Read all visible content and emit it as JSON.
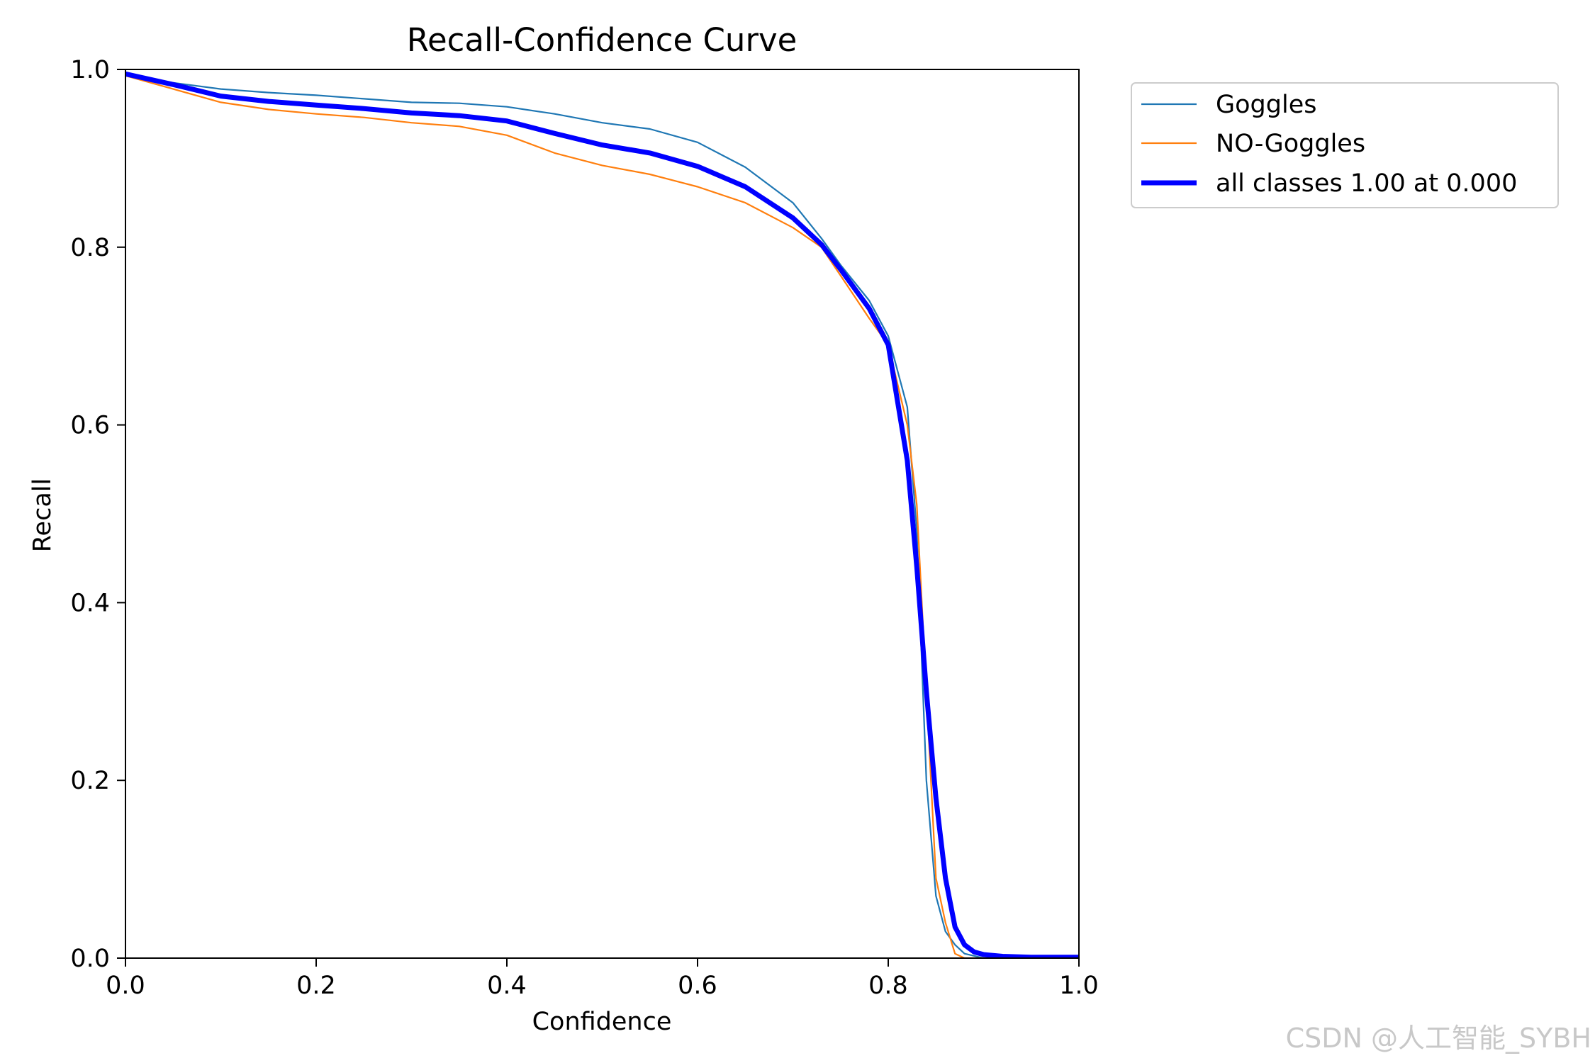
{
  "chart_data": {
    "type": "line",
    "title": "Recall-Confidence Curve",
    "xlabel": "Confidence",
    "ylabel": "Recall",
    "xlim": [
      0,
      1
    ],
    "ylim": [
      0,
      1
    ],
    "x_ticks": [
      "0.0",
      "0.2",
      "0.4",
      "0.6",
      "0.8",
      "1.0"
    ],
    "y_ticks": [
      "0.0",
      "0.2",
      "0.4",
      "0.6",
      "0.8",
      "1.0"
    ],
    "grid": false,
    "legend_position": "outside-top-right",
    "series": [
      {
        "name": "Goggles",
        "color": "#1f77b4",
        "x": [
          0.0,
          0.05,
          0.1,
          0.15,
          0.2,
          0.25,
          0.3,
          0.35,
          0.4,
          0.45,
          0.5,
          0.55,
          0.6,
          0.65,
          0.7,
          0.73,
          0.75,
          0.78,
          0.8,
          0.82,
          0.83,
          0.84,
          0.85,
          0.86,
          0.87,
          0.88,
          0.9,
          0.95,
          1.0
        ],
        "y": [
          0.995,
          0.985,
          0.978,
          0.974,
          0.971,
          0.967,
          0.963,
          0.962,
          0.958,
          0.95,
          0.94,
          0.933,
          0.918,
          0.89,
          0.85,
          0.81,
          0.78,
          0.74,
          0.7,
          0.62,
          0.48,
          0.2,
          0.07,
          0.03,
          0.015,
          0.005,
          0.0,
          0.0,
          0.0
        ]
      },
      {
        "name": "NO-Goggles",
        "color": "#ff7f0e",
        "x": [
          0.0,
          0.05,
          0.1,
          0.15,
          0.2,
          0.25,
          0.3,
          0.35,
          0.4,
          0.45,
          0.5,
          0.55,
          0.6,
          0.65,
          0.7,
          0.73,
          0.75,
          0.78,
          0.8,
          0.82,
          0.83,
          0.84,
          0.85,
          0.86,
          0.87,
          0.88,
          0.9,
          0.95,
          1.0
        ],
        "y": [
          0.993,
          0.978,
          0.963,
          0.955,
          0.95,
          0.946,
          0.94,
          0.936,
          0.926,
          0.906,
          0.892,
          0.882,
          0.868,
          0.85,
          0.822,
          0.8,
          0.768,
          0.72,
          0.69,
          0.6,
          0.51,
          0.3,
          0.09,
          0.04,
          0.005,
          0.0,
          0.0,
          0.0,
          0.0
        ]
      },
      {
        "name": "all classes 1.00 at 0.000",
        "color": "#0000ff",
        "x": [
          0.0,
          0.05,
          0.1,
          0.15,
          0.2,
          0.25,
          0.3,
          0.35,
          0.4,
          0.45,
          0.5,
          0.55,
          0.6,
          0.65,
          0.7,
          0.73,
          0.75,
          0.78,
          0.8,
          0.82,
          0.83,
          0.84,
          0.85,
          0.86,
          0.87,
          0.88,
          0.89,
          0.9,
          0.92,
          0.95,
          1.0
        ],
        "y": [
          0.995,
          0.983,
          0.97,
          0.964,
          0.96,
          0.956,
          0.951,
          0.948,
          0.942,
          0.928,
          0.915,
          0.906,
          0.891,
          0.868,
          0.833,
          0.803,
          0.775,
          0.731,
          0.69,
          0.56,
          0.44,
          0.3,
          0.18,
          0.09,
          0.035,
          0.015,
          0.007,
          0.004,
          0.002,
          0.001,
          0.001
        ]
      }
    ]
  },
  "watermark": "CSDN @人工智能_SYBH"
}
